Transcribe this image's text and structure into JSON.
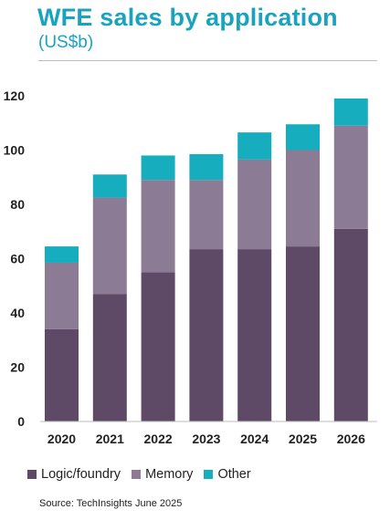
{
  "title": "WFE sales by application",
  "subtitle": "(US$b)",
  "source": "Source: TechInsights June 2025",
  "chart_data": {
    "type": "bar",
    "stacked": true,
    "categories": [
      "2020",
      "2021",
      "2022",
      "2023",
      "2024",
      "2025",
      "2026"
    ],
    "series": [
      {
        "name": "Logic/foundry",
        "color": "#5e4a66",
        "values": [
          34,
          47,
          55,
          63.5,
          63.5,
          64.5,
          71
        ]
      },
      {
        "name": "Memory",
        "color": "#8c7b94",
        "values": [
          24.5,
          35.5,
          34,
          25.5,
          33,
          35.5,
          38
        ]
      },
      {
        "name": "Other",
        "color": "#16aebf",
        "values": [
          6,
          8.5,
          9,
          9.5,
          10,
          9.5,
          10
        ]
      }
    ],
    "y_ticks": [
      "0",
      "20",
      "40",
      "60",
      "80",
      "100",
      "120"
    ],
    "ylim": [
      0,
      120
    ],
    "grid": false,
    "legend_position": "bottom"
  }
}
